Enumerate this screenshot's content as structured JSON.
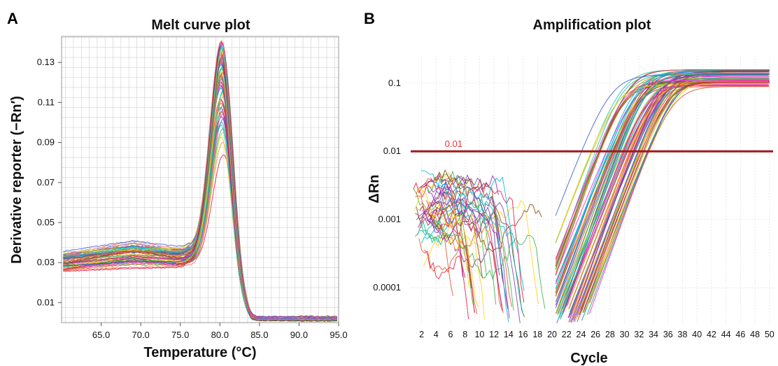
{
  "figure": {
    "panel_a_letter": "A",
    "panel_b_letter": "B"
  },
  "colors": {
    "threshold": "#a3191c",
    "threshold_label": "#e8333a",
    "grid": "#cfcfcf",
    "palette": [
      "#e6194b",
      "#f58231",
      "#ffd11a",
      "#bcd630",
      "#3cb44b",
      "#2ec4b6",
      "#00bcd4",
      "#4363d8",
      "#911eb4",
      "#f032e6",
      "#8b4513",
      "#ff6f61",
      "#7b3fb0",
      "#1f9e89",
      "#e4572e",
      "#a0522d"
    ]
  },
  "chart_data": [
    {
      "type": "line",
      "title": "Melt curve plot",
      "xlabel": "Temperature (°C)",
      "ylabel": "Derivative reporter (−Rn′)",
      "xlim": [
        60.0,
        95.0
      ],
      "ylim": [
        0.0,
        0.143
      ],
      "x_ticks": [
        65.0,
        70.0,
        75.0,
        80.0,
        85.0,
        90.0,
        95.0
      ],
      "x_tick_labels": [
        "65.0",
        "70.0",
        "75.0",
        "80.0",
        "85.0",
        "90.0",
        "95.0"
      ],
      "y_ticks": [
        0.01,
        0.03,
        0.05,
        0.07,
        0.09,
        0.11,
        0.13
      ],
      "y_tick_labels": [
        "0.01",
        "0.03",
        "0.05",
        "0.07",
        "0.09",
        "0.11",
        "0.13"
      ],
      "grid": true,
      "series_count": 60,
      "curve_template": {
        "peak_temperature": 80.3,
        "peak_value_range": [
          0.084,
          0.141
        ],
        "baseline_at_60": [
          0.024,
          0.036
        ],
        "shoulder_at_69": [
          0.025,
          0.043
        ],
        "tail_at_95": [
          0.001,
          0.003
        ]
      }
    },
    {
      "type": "line",
      "title": "Amplification plot",
      "xlabel": "Cycle",
      "ylabel": "ΔRn",
      "xlim": [
        0.5,
        50.5
      ],
      "ylim": [
        3e-05,
        0.25
      ],
      "yscale": "log",
      "x_ticks": [
        2,
        4,
        6,
        8,
        10,
        12,
        14,
        16,
        18,
        20,
        22,
        24,
        26,
        28,
        30,
        32,
        34,
        36,
        38,
        40,
        42,
        44,
        46,
        48,
        50
      ],
      "x_tick_labels": [
        "2",
        "4",
        "6",
        "8",
        "10",
        "12",
        "14",
        "16",
        "18",
        "20",
        "22",
        "24",
        "26",
        "28",
        "30",
        "32",
        "34",
        "36",
        "38",
        "40",
        "42",
        "44",
        "46",
        "48",
        "50"
      ],
      "y_ticks": [
        0.0001,
        0.001,
        0.01,
        0.1
      ],
      "y_tick_labels": [
        "0.0001",
        "0.001",
        "0.01",
        "0.1"
      ],
      "grid": true,
      "threshold": 0.01,
      "threshold_label": "0.01",
      "series_count": 80,
      "curve_template": {
        "ct_range": [
          24.0,
          33.5
        ],
        "plateau_range": [
          0.085,
          0.16
        ],
        "noise_level": 0.001,
        "noise_cycles": [
          1,
          20
        ]
      }
    }
  ]
}
